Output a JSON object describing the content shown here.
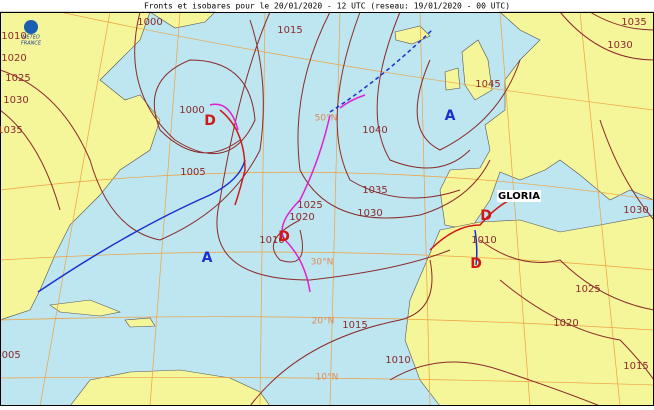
{
  "header": {
    "title": "Fronts et isobares pour le 20/01/2020 - 12 UTC (reseau: 19/01/2020 - 00 UTC)",
    "logo": [
      "METEO",
      "FRANCE"
    ]
  },
  "isobar_labels": [
    "1010",
    "1020",
    "1025",
    "1030",
    "1035",
    "1000",
    "1015",
    "1005",
    "1000",
    "1040",
    "1045",
    "1035",
    "1030",
    "1025",
    "1020",
    "1010",
    "1015",
    "1010",
    "1025",
    "1020",
    "1010",
    "1015",
    "1030",
    "1035",
    "1030",
    "1005"
  ],
  "centers": [
    "D",
    "A",
    "D",
    "A",
    "D",
    "D"
  ],
  "storm_name": "GLORIA",
  "latitude_labels": [
    "50°N",
    "30°N",
    "20°N",
    "10°N"
  ]
}
